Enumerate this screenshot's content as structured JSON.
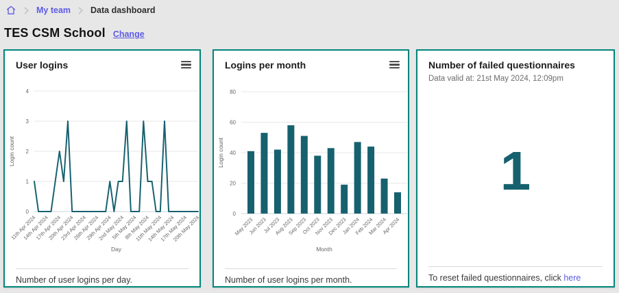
{
  "breadcrumb": {
    "home_icon": "home-icon",
    "items": [
      {
        "label": "My team"
      },
      {
        "label": "Data dashboard"
      }
    ]
  },
  "header": {
    "title": "TES CSM School",
    "change_label": "Change"
  },
  "cards": {
    "user_logins": {
      "caption": "Number of user logins per day."
    },
    "logins_per_month": {
      "caption": "Number of user logins per month."
    },
    "failed_questionnaires": {
      "title": "Number of failed questionnaires",
      "subtitle": "Data valid at: 21st May 2024, 12:09pm",
      "value": "1",
      "footer_prefix": "To reset failed questionnaires, click ",
      "footer_link_label": "here"
    }
  },
  "chart_data": [
    {
      "type": "line",
      "title": "User logins",
      "xlabel": "Day",
      "ylabel": "Login count",
      "ylim": [
        0,
        4
      ],
      "yticks": [
        0,
        1,
        2,
        3,
        4
      ],
      "grid": true,
      "tick_interval": 3,
      "x_tick_labels": [
        "11th Apr 2024",
        "14th Apr 2024",
        "17th Apr 2024",
        "20th Apr 2024",
        "23rd Apr 2024",
        "26th Apr 2024",
        "29th Apr 2024",
        "2nd May 2024",
        "5th May 2024",
        "8th May 2024",
        "11th May 2024",
        "14th May 2024",
        "17th May 2024",
        "20th May 2024"
      ],
      "values": [
        1,
        0,
        0,
        0,
        0,
        1,
        2,
        1,
        3,
        0,
        0,
        0,
        0,
        0,
        0,
        0,
        0,
        0,
        1,
        0,
        1,
        1,
        3,
        0,
        0,
        0,
        3,
        1,
        1,
        0,
        0,
        3,
        0,
        0,
        0,
        0,
        0,
        0,
        0,
        0
      ]
    },
    {
      "type": "bar",
      "title": "Logins per month",
      "xlabel": "Month",
      "ylabel": "Login count",
      "ylim": [
        0,
        80
      ],
      "yticks": [
        0,
        20,
        40,
        60,
        80
      ],
      "grid": true,
      "categories": [
        "May 2023",
        "Jun 2023",
        "Jul 2023",
        "Aug 2023",
        "Sep 2023",
        "Oct 2023",
        "Nov 2023",
        "Dec 2023",
        "Jan 2024",
        "Feb 2024",
        "Mar 2024",
        "Apr 2024"
      ],
      "values": [
        41,
        53,
        42,
        58,
        51,
        38,
        43,
        19,
        47,
        44,
        23,
        14
      ]
    }
  ],
  "colors": {
    "card_border_teal": "#00847c",
    "chart_teal": "#17616f",
    "link_purple": "#5c5ce6",
    "page_bg": "#e8e7e7",
    "gridline": "#e7e7e7",
    "axis_line": "#ccd3de",
    "tick_text": "#666666"
  }
}
